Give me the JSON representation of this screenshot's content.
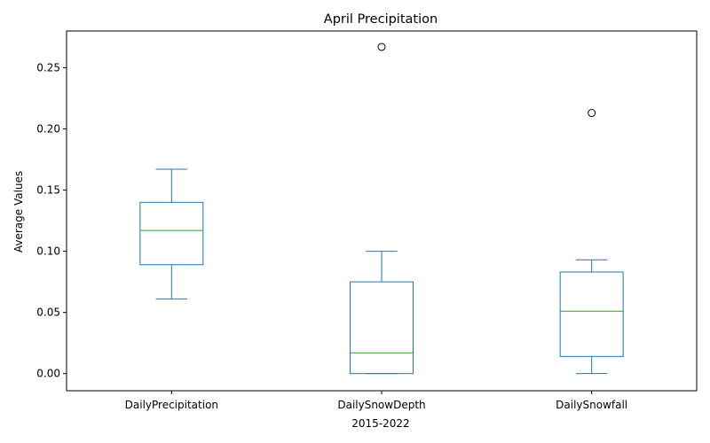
{
  "chart_data": {
    "type": "box",
    "title": "April Precipitation",
    "xlabel": "2015-2022",
    "ylabel": "Average Values",
    "ylim": [
      -0.014,
      0.28
    ],
    "y_ticks": [
      0.0,
      0.05,
      0.1,
      0.15,
      0.2,
      0.25
    ],
    "y_tick_labels": [
      "0.00",
      "0.05",
      "0.10",
      "0.15",
      "0.20",
      "0.25"
    ],
    "grid": false,
    "colors": {
      "box": "#1f77b4",
      "median": "#2ca02c",
      "outlier": "#000000"
    },
    "categories": [
      "DailyPrecipitation",
      "DailySnowDepth",
      "DailySnowfall"
    ],
    "boxes": [
      {
        "name": "DailyPrecipitation",
        "whisker_low": 0.061,
        "q1": 0.089,
        "median": 0.117,
        "q3": 0.14,
        "whisker_high": 0.167,
        "outliers": []
      },
      {
        "name": "DailySnowDepth",
        "whisker_low": 0.0,
        "q1": 0.0,
        "median": 0.017,
        "q3": 0.075,
        "whisker_high": 0.1,
        "outliers": [
          0.267
        ]
      },
      {
        "name": "DailySnowfall",
        "whisker_low": 0.0,
        "q1": 0.014,
        "median": 0.051,
        "q3": 0.083,
        "whisker_high": 0.093,
        "outliers": [
          0.213
        ]
      }
    ]
  }
}
